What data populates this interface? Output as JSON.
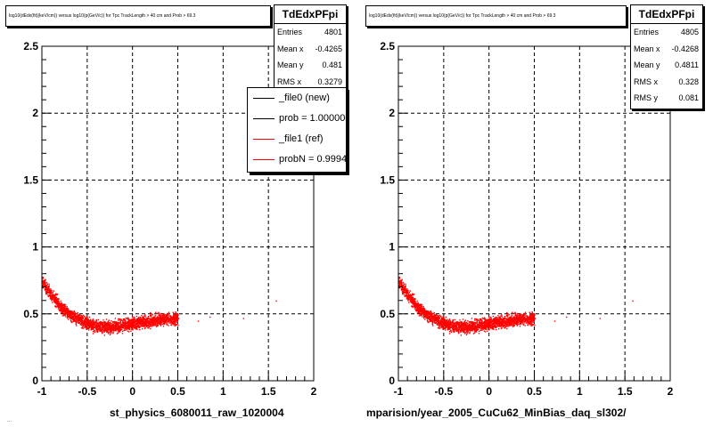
{
  "colors": {
    "new": "#000000",
    "ref": "#ff0000",
    "frame": "#000000",
    "grid": "#000000"
  },
  "panels": [
    {
      "title": "log10(dEdx(fit)(keV/cm)) versus log10(p(GeV/c)) for Tpc TrackLength > 40 cm and Prob > 69.3",
      "bottom_label": "st_physics_6080011_raw_1020004",
      "stats": {
        "name": "TdEdxPFpi",
        "rows": [
          {
            "key": "Entries",
            "value": "4801"
          },
          {
            "key": "Mean x",
            "value": "-0.4265"
          },
          {
            "key": "Mean y",
            "value": "0.481"
          },
          {
            "key": "RMS x",
            "value": "0.3279"
          }
        ]
      },
      "legend": [
        {
          "label": "_file0 (new)",
          "color": "#000000"
        },
        {
          "label": "prob = 1.000000",
          "color": "#000000"
        },
        {
          "label": "_file1 (ref)",
          "color": "#ff0000"
        },
        {
          "label": "probN = 0.999467",
          "color": "#ff0000"
        }
      ]
    },
    {
      "title": "log10(dEdx(fit)(keV/cm)) versus log10(p(GeV/c)) for Tpc TrackLength > 40 cm and Prob > 69.3",
      "bottom_label": "mparision/year_2005_CuCu62_MinBias_daq_sl302/",
      "stats": {
        "name": "TdEdxPFpi",
        "rows": [
          {
            "key": "Entries",
            "value": "4805"
          },
          {
            "key": "Mean x",
            "value": "-0.4268"
          },
          {
            "key": "Mean y",
            "value": "0.4811"
          },
          {
            "key": "RMS x",
            "value": "0.328"
          },
          {
            "key": "RMS y",
            "value": "0.081"
          }
        ]
      }
    }
  ],
  "stray_text": "...",
  "chart_data": [
    {
      "type": "scatter",
      "xlim": [
        -1,
        2
      ],
      "ylim": [
        0,
        2.5
      ],
      "x_ticks": [
        "-1",
        "-0.5",
        "0",
        "0.5",
        "1",
        "1.5",
        "2"
      ],
      "y_ticks": [
        "0",
        "0.5",
        "1",
        "1.5",
        "2",
        "2.5"
      ],
      "grid": true,
      "series": [
        {
          "color": "#ff0000",
          "x": [
            -1.0,
            -0.9,
            -0.8,
            -0.7,
            -0.6,
            -0.5,
            -0.4,
            -0.3,
            -0.2,
            -0.1,
            0.0,
            0.1,
            0.2,
            0.3,
            0.4,
            0.5
          ],
          "y": [
            0.74,
            0.64,
            0.56,
            0.5,
            0.46,
            0.43,
            0.41,
            0.405,
            0.41,
            0.42,
            0.43,
            0.44,
            0.45,
            0.46,
            0.465,
            0.47
          ]
        }
      ]
    },
    {
      "type": "scatter",
      "xlim": [
        -1,
        2
      ],
      "ylim": [
        0,
        2.5
      ],
      "x_ticks": [
        "-1",
        "-0.5",
        "0",
        "0.5",
        "1",
        "1.5",
        "2"
      ],
      "y_ticks": [
        "0",
        "0.5",
        "1",
        "1.5",
        "2",
        "2.5"
      ],
      "grid": true,
      "series": [
        {
          "color": "#ff0000",
          "x": [
            -1.0,
            -0.9,
            -0.8,
            -0.7,
            -0.6,
            -0.5,
            -0.4,
            -0.3,
            -0.2,
            -0.1,
            0.0,
            0.1,
            0.2,
            0.3,
            0.4,
            0.5
          ],
          "y": [
            0.74,
            0.64,
            0.56,
            0.5,
            0.46,
            0.43,
            0.41,
            0.405,
            0.41,
            0.42,
            0.43,
            0.44,
            0.45,
            0.46,
            0.465,
            0.47
          ]
        }
      ]
    }
  ]
}
